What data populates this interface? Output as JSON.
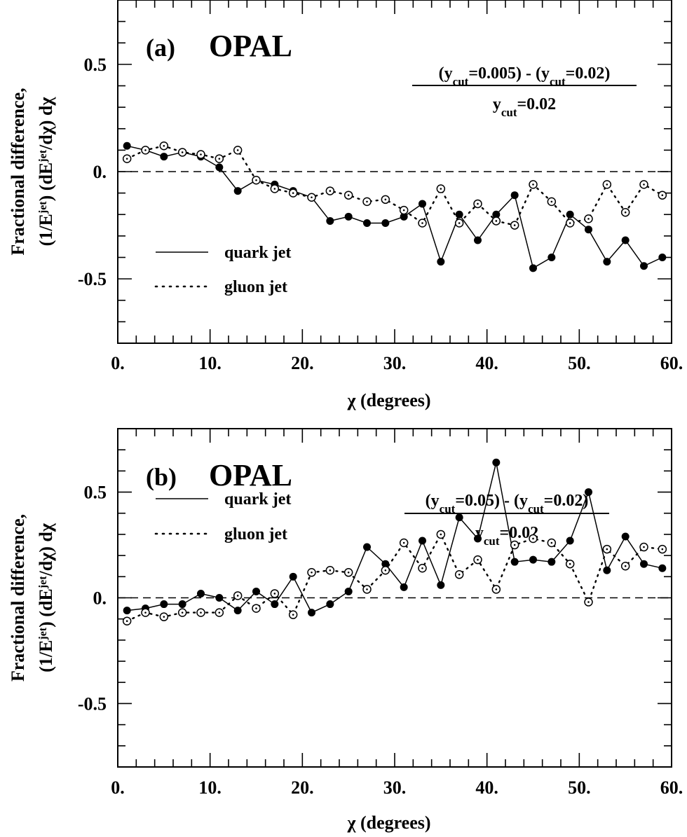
{
  "chart_data": [
    {
      "type": "line",
      "panel_label": "(a)",
      "experiment": "OPAL",
      "xlabel": "χ (degrees)",
      "ylabel_line1": "Fractional difference,",
      "ylabel_line2": "(1/E^jet) (dE^jet/dχ) dχ",
      "xlim": [
        0,
        60
      ],
      "ylim": [
        -0.8,
        0.8
      ],
      "xticks": [
        "0.",
        "10.",
        "20.",
        "30.",
        "40.",
        "50.",
        "60."
      ],
      "yticks": [
        "0.5",
        "0.",
        "-0.5"
      ],
      "reference_line": 0,
      "formula": {
        "num_a": "(y",
        "num_a_sub": "cut",
        "num_b": "=0.005) - (y",
        "num_b_sub": "cut",
        "num_c": "=0.02)",
        "den_a": "y",
        "den_a_sub": "cut",
        "den_b": "=0.02"
      },
      "legend": [
        {
          "label": "quark jet",
          "style": "solid"
        },
        {
          "label": "gluon jet",
          "style": "dotted"
        }
      ],
      "legend_position": "lower-left",
      "x": [
        1,
        3,
        5,
        7,
        9,
        11,
        13,
        15,
        17,
        19,
        21,
        23,
        25,
        27,
        29,
        31,
        33,
        35,
        37,
        39,
        41,
        43,
        45,
        47,
        49,
        51,
        53,
        55,
        57,
        59
      ],
      "series": [
        {
          "name": "quark jet",
          "marker": "filled-circle",
          "values": [
            0.12,
            0.1,
            0.07,
            0.09,
            0.07,
            0.02,
            -0.09,
            -0.04,
            -0.06,
            -0.09,
            -0.12,
            -0.23,
            -0.21,
            -0.24,
            -0.24,
            -0.21,
            -0.15,
            -0.42,
            -0.2,
            -0.32,
            -0.2,
            -0.11,
            -0.45,
            -0.4,
            -0.2,
            -0.27,
            -0.42,
            -0.32,
            -0.44,
            -0.4
          ]
        },
        {
          "name": "gluon jet",
          "marker": "open-circle",
          "values": [
            0.06,
            0.1,
            0.12,
            0.09,
            0.08,
            0.06,
            0.1,
            -0.04,
            -0.08,
            -0.1,
            -0.12,
            -0.09,
            -0.11,
            -0.14,
            -0.13,
            -0.18,
            -0.24,
            -0.08,
            -0.24,
            -0.15,
            -0.23,
            -0.25,
            -0.06,
            -0.14,
            -0.24,
            -0.22,
            -0.06,
            -0.19,
            -0.06,
            -0.11
          ]
        }
      ]
    },
    {
      "type": "line",
      "panel_label": "(b)",
      "experiment": "OPAL",
      "xlabel": "χ (degrees)",
      "ylabel_line1": "Fractional difference,",
      "ylabel_line2": "(1/E^jet) (dE^jet/dχ) dχ",
      "xlim": [
        0,
        60
      ],
      "ylim": [
        -0.8,
        0.8
      ],
      "xticks": [
        "0.",
        "10.",
        "20.",
        "30.",
        "40.",
        "50.",
        "60."
      ],
      "yticks": [
        "0.5",
        "0.",
        "-0.5"
      ],
      "reference_line": 0,
      "formula": {
        "num_a": "(y",
        "num_a_sub": "cut",
        "num_b": "=0.05) - (y",
        "num_b_sub": "cut",
        "num_c": "=0.02)",
        "den_a": "y",
        "den_a_sub": "cut",
        "den_b": "=0.02"
      },
      "legend": [
        {
          "label": "quark jet",
          "style": "solid"
        },
        {
          "label": "gluon jet",
          "style": "dotted"
        }
      ],
      "legend_position": "lower-left",
      "x": [
        1,
        3,
        5,
        7,
        9,
        11,
        13,
        15,
        17,
        19,
        21,
        23,
        25,
        27,
        29,
        31,
        33,
        35,
        37,
        39,
        41,
        43,
        45,
        47,
        49,
        51,
        53,
        55,
        57,
        59
      ],
      "series": [
        {
          "name": "quark jet",
          "marker": "filled-circle",
          "values": [
            -0.06,
            -0.05,
            -0.03,
            -0.03,
            0.02,
            0.0,
            -0.06,
            0.03,
            -0.03,
            0.1,
            -0.07,
            -0.03,
            0.03,
            0.24,
            0.16,
            0.05,
            0.27,
            0.06,
            0.38,
            0.28,
            0.64,
            0.17,
            0.18,
            0.17,
            0.27,
            0.5,
            0.13,
            0.29,
            0.16,
            0.14
          ]
        },
        {
          "name": "gluon jet",
          "marker": "open-circle",
          "values": [
            -0.11,
            -0.07,
            -0.09,
            -0.07,
            -0.07,
            -0.07,
            0.01,
            -0.05,
            0.02,
            -0.08,
            0.12,
            0.13,
            0.12,
            0.04,
            0.13,
            0.26,
            0.14,
            0.3,
            0.11,
            0.18,
            0.04,
            0.25,
            0.28,
            0.26,
            0.16,
            -0.02,
            0.23,
            0.15,
            0.24,
            0.23
          ]
        }
      ]
    }
  ]
}
